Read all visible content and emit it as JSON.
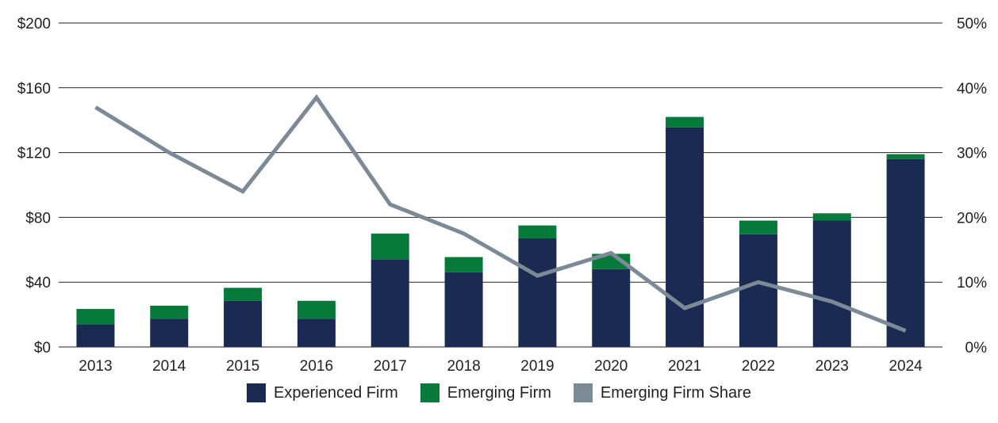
{
  "chart_data": {
    "type": "bar",
    "stacked": true,
    "categories": [
      "2013",
      "2014",
      "2015",
      "2016",
      "2017",
      "2018",
      "2019",
      "2020",
      "2021",
      "2022",
      "2023",
      "2024"
    ],
    "series": [
      {
        "name": "Experienced Firm",
        "type": "bar",
        "axis": "left",
        "color": "#1b2a52",
        "values": [
          14,
          17.5,
          28.5,
          17.5,
          54,
          46,
          67,
          48,
          135.5,
          69.5,
          78,
          116
        ]
      },
      {
        "name": "Emerging Firm",
        "type": "bar",
        "axis": "left",
        "color": "#067a3a",
        "values": [
          9.5,
          8,
          8,
          11,
          16,
          9.5,
          8,
          9.5,
          6.5,
          8.5,
          4.5,
          3
        ]
      },
      {
        "name": "Emerging Firm Share",
        "type": "line",
        "axis": "right",
        "color": "#7b8a96",
        "values": [
          37,
          30,
          24,
          38.5,
          22,
          17.5,
          11,
          14.5,
          6,
          10,
          7,
          2.5
        ]
      }
    ],
    "left_axis": {
      "min": 0,
      "max": 200,
      "ticks": [
        "$0",
        "$40",
        "$80",
        "$120",
        "$160",
        "$200"
      ],
      "tick_values": [
        0,
        40,
        80,
        120,
        160,
        200
      ]
    },
    "right_axis": {
      "min": 0,
      "max": 50,
      "ticks": [
        "0%",
        "10%",
        "20%",
        "30%",
        "40%",
        "50%"
      ],
      "tick_values": [
        0,
        10,
        20,
        30,
        40,
        50
      ]
    },
    "grid": true,
    "legend_position": "bottom",
    "legend": [
      "Experienced Firm",
      "Emerging Firm",
      "Emerging Firm Share"
    ]
  }
}
